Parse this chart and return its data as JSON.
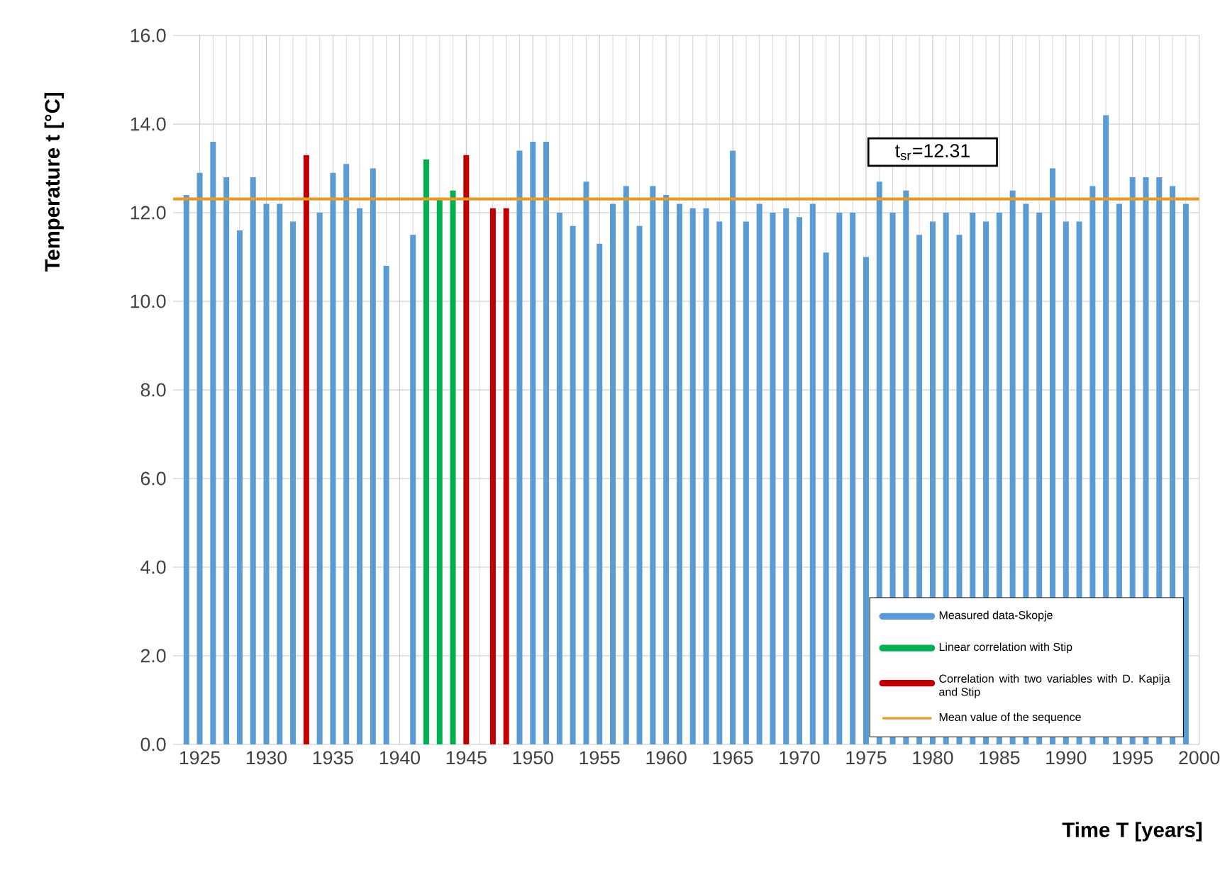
{
  "chart_data": {
    "type": "bar",
    "xlabel": "Time  T [years]",
    "ylabel": "Temperature t  [°C]",
    "xlim": [
      1923,
      2000
    ],
    "xticks": [
      1925,
      1930,
      1935,
      1940,
      1945,
      1950,
      1955,
      1960,
      1965,
      1970,
      1975,
      1980,
      1985,
      1990,
      1995,
      2000
    ],
    "ylim": [
      0,
      16
    ],
    "yticks": [
      {
        "value": 0,
        "label": "0.0"
      },
      {
        "value": 2,
        "label": "2.0"
      },
      {
        "value": 4,
        "label": "4.0"
      },
      {
        "value": 6,
        "label": "6.0"
      },
      {
        "value": 8,
        "label": "8.0"
      },
      {
        "value": 10,
        "label": "10.0"
      },
      {
        "value": 12,
        "label": "12.0"
      },
      {
        "value": 14,
        "label": "14.0"
      },
      {
        "value": 16,
        "label": "16.0"
      }
    ],
    "grid": true,
    "legend": "bottom right",
    "series": [
      {
        "name": "Measured data-Skopje",
        "color": "#5b9bd5",
        "x": [
          1924,
          1925,
          1926,
          1927,
          1928,
          1929,
          1930,
          1931,
          1932,
          1934,
          1935,
          1936,
          1937,
          1938,
          1939,
          1941,
          1949,
          1950,
          1951,
          1952,
          1953,
          1954,
          1955,
          1956,
          1957,
          1958,
          1959,
          1960,
          1961,
          1962,
          1963,
          1964,
          1965,
          1966,
          1967,
          1968,
          1969,
          1970,
          1971,
          1972,
          1973,
          1974,
          1975,
          1976,
          1977,
          1978,
          1979,
          1980,
          1981,
          1982,
          1983,
          1984,
          1985,
          1986,
          1987,
          1988,
          1989,
          1990,
          1991,
          1992,
          1993,
          1994,
          1995,
          1996,
          1997,
          1998,
          1999
        ],
        "values": [
          12.4,
          12.9,
          13.6,
          12.8,
          11.6,
          12.8,
          12.2,
          12.2,
          11.8,
          12.0,
          12.9,
          13.1,
          12.1,
          13.0,
          10.8,
          11.5,
          13.4,
          13.6,
          13.6,
          12.0,
          11.7,
          12.7,
          11.3,
          12.2,
          12.6,
          11.7,
          12.6,
          12.4,
          12.2,
          12.1,
          12.1,
          11.8,
          13.4,
          11.8,
          12.2,
          12.0,
          12.1,
          11.9,
          12.2,
          11.1,
          12.0,
          12.0,
          11.0,
          12.7,
          12.0,
          12.5,
          11.5,
          11.8,
          12.0,
          11.5,
          12.0,
          11.8,
          12.0,
          12.5,
          12.2,
          12.0,
          13.0,
          11.8,
          11.8,
          12.6,
          14.2,
          12.2,
          12.8,
          12.8,
          12.8,
          12.6,
          12.2
        ]
      },
      {
        "name": "Linear correlation with Stip",
        "color": "#00b050",
        "x": [
          1942,
          1943,
          1944
        ],
        "values": [
          13.2,
          12.3,
          12.5
        ]
      },
      {
        "name": "Correlation with two variables with D. Kapija and Stip",
        "color": "#c00000",
        "x": [
          1933,
          1945,
          1947,
          1948
        ],
        "values": [
          13.3,
          13.3,
          12.1,
          12.1
        ]
      },
      {
        "name": "Mean value of the sequence",
        "type": "line",
        "color": "#e69a28",
        "x": [
          1923,
          2000
        ],
        "values": [
          12.31,
          12.31
        ]
      }
    ],
    "annotations": [
      {
        "text": "t$_{sr}$=12.31",
        "x": 1980,
        "y": 12.31
      }
    ]
  }
}
